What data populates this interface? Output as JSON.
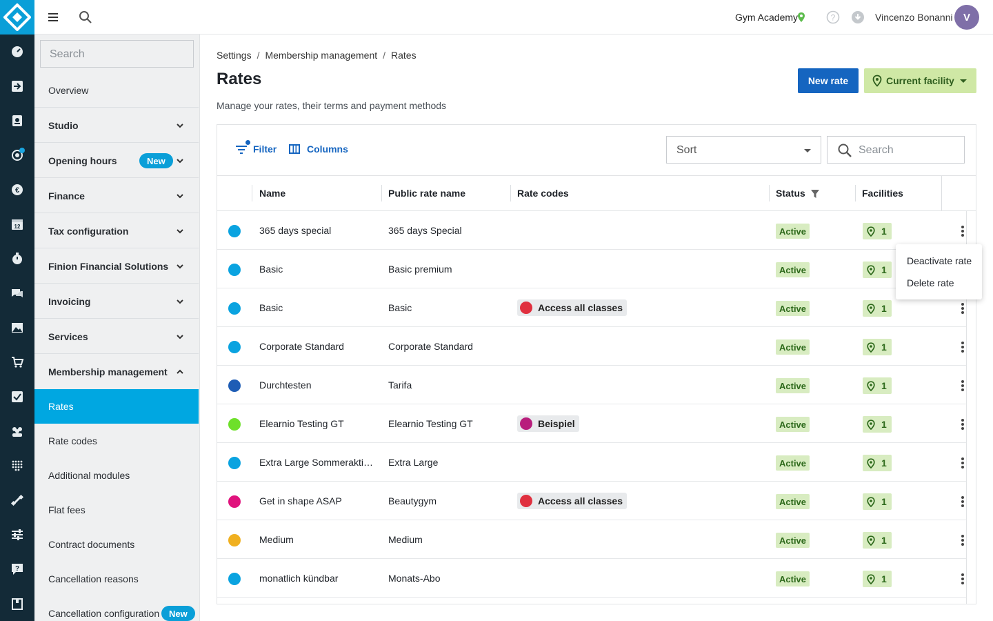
{
  "topbar": {
    "facility": "Gym Academy",
    "user": "Vincenzo Bonanni",
    "avatar_initial": "V"
  },
  "sidebar": {
    "search_placeholder": "Search",
    "items": [
      {
        "label": "Overview"
      },
      {
        "label": "Studio"
      },
      {
        "label": "Opening hours",
        "badge": "New"
      },
      {
        "label": "Finance"
      },
      {
        "label": "Tax configuration"
      },
      {
        "label": "Finion Financial Solutions"
      },
      {
        "label": "Invoicing"
      },
      {
        "label": "Services"
      },
      {
        "label": "Membership management"
      },
      {
        "label": "Rates"
      },
      {
        "label": "Rate codes"
      },
      {
        "label": "Additional modules"
      },
      {
        "label": "Flat fees"
      },
      {
        "label": "Contract documents"
      },
      {
        "label": "Cancellation reasons"
      },
      {
        "label": "Cancellation configuration",
        "badge": "New"
      }
    ]
  },
  "breadcrumb": [
    "Settings",
    "Membership management",
    "Rates"
  ],
  "page": {
    "title": "Rates",
    "subtitle": "Manage your rates, their terms and payment methods",
    "new_button": "New rate",
    "facility_button": "Current facility"
  },
  "toolbar": {
    "filter": "Filter",
    "columns": "Columns",
    "sort_placeholder": "Sort",
    "search_placeholder": "Search"
  },
  "table": {
    "headers": [
      "Name",
      "Public rate name",
      "Rate codes",
      "Status",
      "Facilities"
    ],
    "rows": [
      {
        "color": "#0aa3e0",
        "name": "365 days special",
        "public": "365 days Special",
        "code": null,
        "status": "Active",
        "facilities": "1"
      },
      {
        "color": "#0aa3e0",
        "name": "Basic",
        "public": "Basic premium",
        "code": null,
        "status": "Active",
        "facilities": "1"
      },
      {
        "color": "#0aa3e0",
        "name": "Basic",
        "public": "Basic",
        "code": {
          "label": "Access all classes",
          "color": "#e0303f"
        },
        "status": "Active",
        "facilities": "1"
      },
      {
        "color": "#0aa3e0",
        "name": "Corporate Standard",
        "public": "Corporate Standard",
        "code": null,
        "status": "Active",
        "facilities": "1"
      },
      {
        "color": "#1e5db5",
        "name": "Durchtesten",
        "public": "Tarifa",
        "code": null,
        "status": "Active",
        "facilities": "1"
      },
      {
        "color": "#6ee02a",
        "name": "Elearnio Testing GT",
        "public": "Elearnio Testing GT",
        "code": {
          "label": "Beispiel",
          "color": "#b81e7c"
        },
        "status": "Active",
        "facilities": "1"
      },
      {
        "color": "#0aa3e0",
        "name": "Extra Large Sommeraktio...",
        "public": "Extra Large",
        "code": null,
        "status": "Active",
        "facilities": "1"
      },
      {
        "color": "#e0137d",
        "name": "Get in shape ASAP",
        "public": "Beautygym",
        "code": {
          "label": "Access all classes",
          "color": "#e0303f"
        },
        "status": "Active",
        "facilities": "1"
      },
      {
        "color": "#f0b020",
        "name": "Medium",
        "public": "Medium",
        "code": null,
        "status": "Active",
        "facilities": "1"
      },
      {
        "color": "#0aa3e0",
        "name": "monatlich kündbar",
        "public": "Monats-Abo",
        "code": null,
        "status": "Active",
        "facilities": "1"
      }
    ]
  },
  "context_menu": {
    "items": [
      "Deactivate rate",
      "Delete rate"
    ]
  },
  "colors": {
    "rail": "#132a37",
    "accent": "#0a9fd8",
    "primary_button": "#1565c0",
    "status_bg": "#d8ecc1"
  }
}
